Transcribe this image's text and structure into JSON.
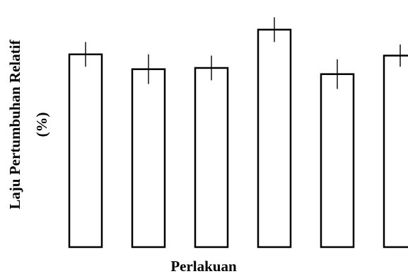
{
  "chart_data": {
    "type": "bar",
    "categories": [
      "",
      "",
      "",
      "",
      "",
      ""
    ],
    "values": [
      78,
      72,
      72.5,
      88,
      70,
      77.5
    ],
    "errors": [
      5,
      6,
      5,
      5,
      6,
      4.5
    ],
    "title": "",
    "xlabel": "Perlakuan",
    "ylabel_line1": "Laju Pertumbuhan Relatif",
    "ylabel_line2": "(%)",
    "ylim": [
      0,
      100
    ],
    "grid": false,
    "legend": "none",
    "colors": {
      "bar_fill": "#ffffff",
      "bar_stroke": "#000000"
    }
  }
}
